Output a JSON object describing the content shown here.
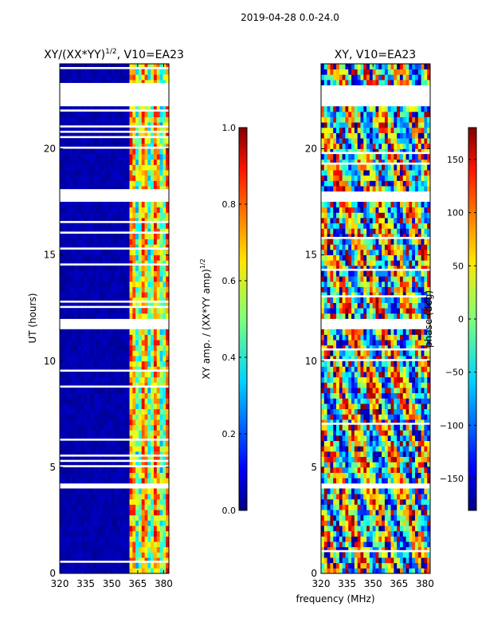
{
  "figure": {
    "suptitle": "2019-04-28 0.0-24.0",
    "xlabel": "frequency (MHz)"
  },
  "chart_data": [
    {
      "type": "heatmap",
      "title": "XY/(XX*YY)^{1/2}, V10=EA23",
      "title_main": "XY/(XX*YY)",
      "title_sup": "1/2",
      "title_tail": ", V10=EA23",
      "xlabel": "frequency (MHz)",
      "ylabel": "UT (hours)",
      "xlim": [
        320,
        383
      ],
      "ylim": [
        0,
        24
      ],
      "xticks": [
        320,
        335,
        350,
        365,
        380
      ],
      "yticks": [
        0,
        5,
        10,
        15,
        20
      ],
      "colorscale": "jet",
      "colorbar": {
        "label": "XY amp. / (XX*YY amp)^{1/2}",
        "label_main": "XY amp. / (XX*YY amp)",
        "label_sup": "1/2",
        "range": [
          0.0,
          1.0
        ],
        "ticks": [
          "0.0",
          "0.2",
          "0.4",
          "0.6",
          "0.8",
          "1.0"
        ],
        "tick_values": [
          0.0,
          0.2,
          0.4,
          0.6,
          0.8,
          1.0
        ]
      },
      "low_band_mhz": [
        320,
        360
      ],
      "high_band_mhz": [
        360,
        383
      ],
      "flagged_time_ranges_hours": [
        [
          22.0,
          23.0
        ],
        [
          17.6,
          17.9
        ],
        [
          11.6,
          11.9
        ],
        [
          4.1,
          4.25
        ],
        [
          5.0,
          5.1
        ]
      ]
    },
    {
      "type": "heatmap",
      "title": "XY, V10=EA23",
      "xlabel": "frequency (MHz)",
      "ylabel": "",
      "xlim": [
        320,
        383
      ],
      "ylim": [
        0,
        24
      ],
      "xticks": [
        320,
        335,
        350,
        365,
        380
      ],
      "yticks": [
        0,
        5,
        10,
        15,
        20
      ],
      "colorscale": "jet",
      "colorbar": {
        "label": "phase (deg)",
        "range": [
          -180,
          180
        ],
        "ticks": [
          "150",
          "100",
          "50",
          "0",
          "−50",
          "−100",
          "−150"
        ],
        "tick_values": [
          150,
          100,
          50,
          0,
          -50,
          -100,
          -150
        ]
      },
      "flagged_time_ranges_hours": [
        [
          22.0,
          23.0
        ],
        [
          17.6,
          17.9
        ],
        [
          11.6,
          11.9
        ],
        [
          4.1,
          4.25
        ],
        [
          5.0,
          5.1
        ]
      ]
    }
  ]
}
